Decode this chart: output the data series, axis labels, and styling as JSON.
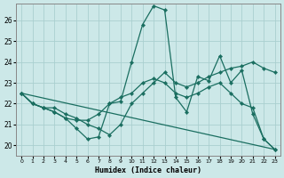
{
  "xlabel": "Humidex (Indice chaleur)",
  "bg_color": "#cce8e8",
  "grid_color": "#aacfcf",
  "line_color": "#1a6e60",
  "xlim": [
    -0.5,
    23.5
  ],
  "ylim": [
    19.5,
    26.8
  ],
  "yticks": [
    20,
    21,
    22,
    23,
    24,
    25,
    26
  ],
  "xticks": [
    0,
    1,
    2,
    3,
    4,
    5,
    6,
    7,
    8,
    9,
    10,
    11,
    12,
    13,
    14,
    15,
    16,
    17,
    18,
    19,
    20,
    21,
    22,
    23
  ],
  "line1_x": [
    0,
    1,
    2,
    3,
    4,
    5,
    6,
    7,
    8,
    9,
    10,
    11,
    12,
    13,
    14,
    15,
    16,
    17,
    18,
    19,
    20,
    21,
    22,
    23
  ],
  "line1_y": [
    22.5,
    22.0,
    21.8,
    21.8,
    21.5,
    21.3,
    21.0,
    20.8,
    20.5,
    21.0,
    22.0,
    22.5,
    23.0,
    23.5,
    23.0,
    22.8,
    23.0,
    23.3,
    23.5,
    23.7,
    23.8,
    24.0,
    23.7,
    23.5
  ],
  "line2_x": [
    0,
    1,
    2,
    3,
    4,
    5,
    6,
    7,
    8,
    9,
    10,
    11,
    12,
    13,
    14,
    15,
    16,
    17,
    18,
    19,
    20,
    21,
    22,
    23
  ],
  "line2_y": [
    22.5,
    22.0,
    21.8,
    21.6,
    21.3,
    20.8,
    20.3,
    20.4,
    22.0,
    22.1,
    24.0,
    25.8,
    26.7,
    26.5,
    22.3,
    21.6,
    23.3,
    23.1,
    24.3,
    23.0,
    23.6,
    21.5,
    20.3,
    19.8
  ],
  "line3_x": [
    0,
    1,
    2,
    3,
    4,
    5,
    6,
    7,
    8,
    9,
    10,
    11,
    12,
    13,
    14,
    15,
    16,
    17,
    18,
    19,
    20,
    21,
    22,
    23
  ],
  "line3_y": [
    22.5,
    22.0,
    21.8,
    21.6,
    21.3,
    21.2,
    21.2,
    21.5,
    22.0,
    22.3,
    22.5,
    23.0,
    23.2,
    23.0,
    22.5,
    22.3,
    22.5,
    22.8,
    23.0,
    22.5,
    22.0,
    21.8,
    20.3,
    19.8
  ],
  "line4_x": [
    0,
    23
  ],
  "line4_y": [
    22.5,
    19.8
  ]
}
